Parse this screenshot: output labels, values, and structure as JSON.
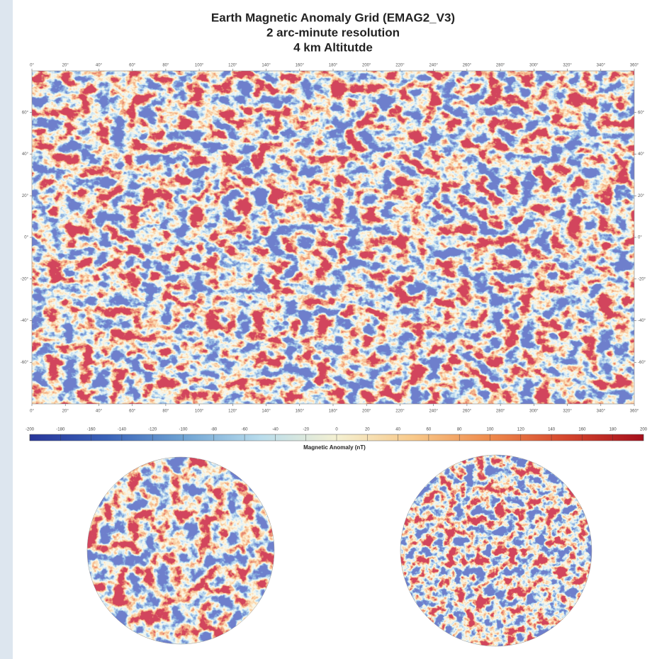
{
  "map": {
    "title": [
      "Earth Magnetic Anomaly Grid (EMAG2_V3)",
      "2 arc-minute resolution",
      "4 km Altitutde"
    ],
    "lon_ticks": [
      {
        "value": 0,
        "label": "0°"
      },
      {
        "value": 20,
        "label": "20°"
      },
      {
        "value": 40,
        "label": "40°"
      },
      {
        "value": 60,
        "label": "60°"
      },
      {
        "value": 80,
        "label": "80°"
      },
      {
        "value": 100,
        "label": "100°"
      },
      {
        "value": 120,
        "label": "120°"
      },
      {
        "value": 140,
        "label": "140°"
      },
      {
        "value": 160,
        "label": "160°"
      },
      {
        "value": 180,
        "label": "180°"
      },
      {
        "value": 200,
        "label": "200°"
      },
      {
        "value": 220,
        "label": "220°"
      },
      {
        "value": 240,
        "label": "240°"
      },
      {
        "value": 260,
        "label": "260°"
      },
      {
        "value": 280,
        "label": "280°"
      },
      {
        "value": 300,
        "label": "300°"
      },
      {
        "value": 320,
        "label": "320°"
      },
      {
        "value": 340,
        "label": "340°"
      },
      {
        "value": 360,
        "label": "360°"
      }
    ],
    "xlim": [
      0,
      360
    ],
    "lat_ticks": [
      {
        "value": 60,
        "label": "60°"
      },
      {
        "value": 40,
        "label": "40°"
      },
      {
        "value": 20,
        "label": "20°"
      },
      {
        "value": 0,
        "label": "0°"
      },
      {
        "value": -20,
        "label": "-20°"
      },
      {
        "value": -40,
        "label": "-40°"
      },
      {
        "value": -60,
        "label": "-60°"
      }
    ],
    "ylim": [
      -80,
      80
    ],
    "colorbar": {
      "label": "Magnetic Anomaly (nT)",
      "lim": [
        -200,
        200
      ],
      "ticks": [
        -200,
        -180,
        -160,
        -140,
        -120,
        -100,
        -80,
        -60,
        -40,
        -20,
        0,
        20,
        40,
        60,
        80,
        100,
        120,
        140,
        160,
        180,
        200
      ],
      "colormap": [
        "#28369a",
        "#3a62b8",
        "#6fa3d3",
        "#b8dcec",
        "#f4f0d2",
        "#f8c98a",
        "#ee8a4c",
        "#d4452d",
        "#a50f1c"
      ]
    }
  }
}
